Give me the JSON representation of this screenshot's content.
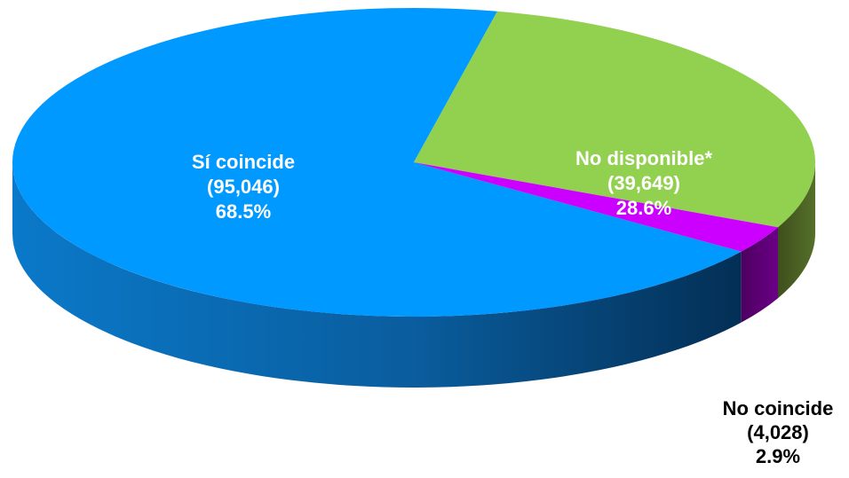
{
  "chart_data": {
    "type": "pie",
    "style": "3d",
    "slices": [
      {
        "label": "Sí coincide",
        "count_text": "(95,046)",
        "percent_text": "68.5%",
        "value": 95046,
        "percent": 68.5,
        "color": "#0099ff",
        "side_color": "#0a6fb8",
        "label_color": "#ffffff"
      },
      {
        "label": "No disponible*",
        "count_text": "(39,649)",
        "percent_text": "28.6%",
        "value": 39649,
        "percent": 28.6,
        "color": "#92d050",
        "side_color": "#4a5e22",
        "label_color": "#ffffff"
      },
      {
        "label": "No coincide",
        "count_text": "(4,028)",
        "percent_text": "2.9%",
        "value": 4028,
        "percent": 2.9,
        "color": "#cc00ff",
        "side_color": "#5a0070",
        "label_color": "#000000"
      }
    ]
  }
}
